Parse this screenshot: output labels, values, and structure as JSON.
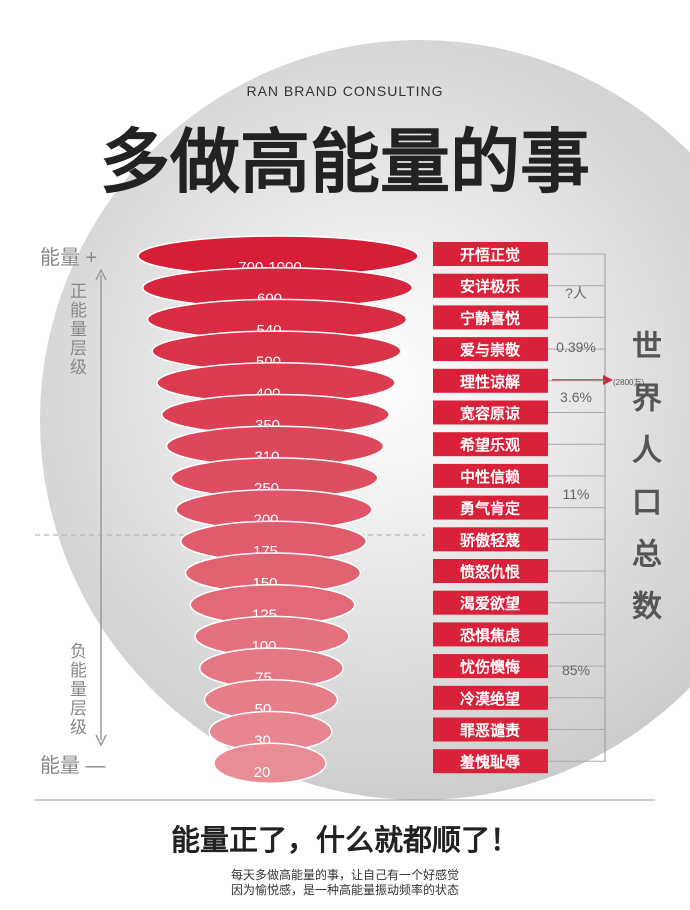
{
  "brand": "RAN BRAND CONSULTING",
  "title": "多做高能量的事",
  "left": {
    "top": "能量 +",
    "positive": "正能量层级",
    "negative": "负能量层级",
    "bottom": "能量 —"
  },
  "levels": [
    {
      "value": "700-1000",
      "name": "开悟正觉"
    },
    {
      "value": "600",
      "name": "安详极乐"
    },
    {
      "value": "540",
      "name": "宁静喜悦"
    },
    {
      "value": "500",
      "name": "爱与崇敬"
    },
    {
      "value": "400",
      "name": "理性谅解"
    },
    {
      "value": "350",
      "name": "宽容原谅"
    },
    {
      "value": "310",
      "name": "希望乐观"
    },
    {
      "value": "250",
      "name": "中性信赖"
    },
    {
      "value": "200",
      "name": "勇气肯定"
    },
    {
      "value": "175",
      "name": "骄傲轻蔑"
    },
    {
      "value": "150",
      "name": "愤怒仇恨"
    },
    {
      "value": "125",
      "name": "渴爱欲望"
    },
    {
      "value": "100",
      "name": "恐惧焦虑"
    },
    {
      "value": "75",
      "name": "忧伤懊悔"
    },
    {
      "value": "50",
      "name": "冷漠绝望"
    },
    {
      "value": "30",
      "name": "罪恶谴责"
    },
    {
      "value": "20",
      "name": "羞愧耻辱"
    }
  ],
  "shares": [
    "?人",
    "0.39%",
    "3.6%",
    "11%",
    "85%"
  ],
  "arrow_note": "(2800万)",
  "population": "世界人口总数",
  "footer": {
    "slogan": "能量正了，什么就都顺了！",
    "lines": [
      "每天多做高能量的事，让自己有一个好感觉",
      "因为愉悦感，是一种高能量振动频率的状态"
    ]
  }
}
